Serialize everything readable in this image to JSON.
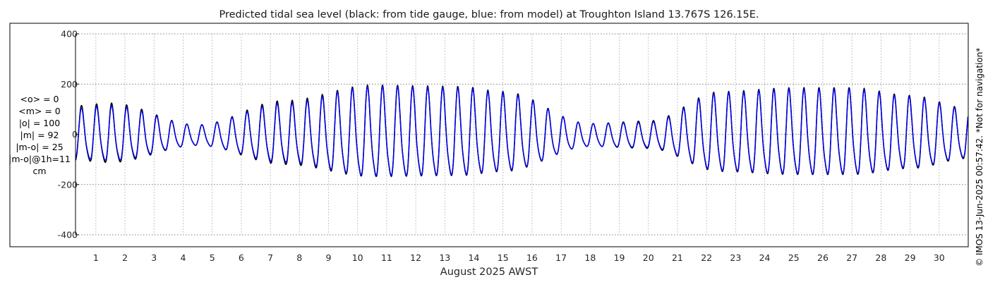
{
  "chart_data": {
    "type": "line",
    "title": "Predicted tidal sea level (black: from tide gauge, blue: from model) at Troughton Island 13.767S 126.15E.",
    "xlabel": "August 2025 AWST",
    "ylabel": "",
    "ylim": [
      -400,
      400
    ],
    "yticks": [
      -400,
      -200,
      0,
      200,
      400
    ],
    "xlim": [
      0.3,
      31.0
    ],
    "xticks": [
      1,
      2,
      3,
      4,
      5,
      6,
      7,
      8,
      9,
      10,
      11,
      12,
      13,
      14,
      15,
      16,
      17,
      18,
      19,
      20,
      21,
      22,
      23,
      24,
      25,
      26,
      27,
      28,
      29,
      30
    ],
    "grid": true,
    "units": "cm",
    "series": [
      {
        "name": "tide gauge",
        "color": "#000000",
        "spring_neap_amplitude": {
          "days": [
            0.3,
            1.5,
            4.5,
            7.5,
            10.5,
            13.5,
            15,
            18,
            20,
            22.5,
            25,
            27,
            29,
            31
          ],
          "amp": [
            120,
            130,
            45,
            140,
            200,
            195,
            175,
            50,
            60,
            175,
            190,
            190,
            160,
            110
          ]
        }
      },
      {
        "name": "model",
        "color": "#0000ff",
        "spring_neap_amplitude": {
          "days": [
            0.3,
            1.5,
            4.5,
            7.5,
            10.5,
            13.5,
            15,
            18,
            20,
            22.5,
            25,
            27,
            29,
            31
          ],
          "amp": [
            110,
            120,
            45,
            130,
            195,
            190,
            170,
            50,
            55,
            170,
            185,
            185,
            155,
            105
          ]
        }
      }
    ],
    "stats": [
      "<o> = 0",
      "<m> = 0",
      "|o| = 100",
      "|m| = 92",
      "|m-o| = 25",
      "|m-o|@1h=11",
      "cm"
    ]
  },
  "side_note": "© IMOS 13-Jun-2025 00:57:42. *Not for navigation*"
}
